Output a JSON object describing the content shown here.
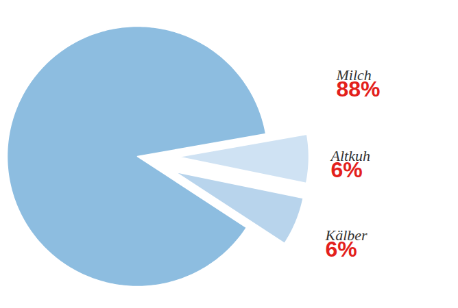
{
  "chart_data": {
    "type": "pie",
    "categories": [
      "Milch",
      "Altkuh",
      "Kälber"
    ],
    "values": [
      88,
      6,
      6
    ],
    "value_labels": [
      "88%",
      "6%",
      "6%"
    ],
    "colors": [
      "#8dbde0",
      "#cfe2f3",
      "#b8d4ec"
    ],
    "data_labels": true
  }
}
